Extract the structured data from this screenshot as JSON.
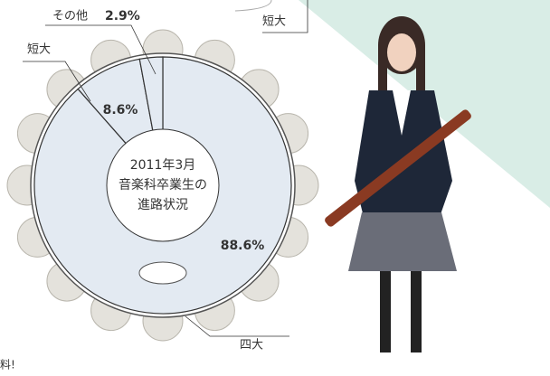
{
  "chart_data": {
    "type": "pie",
    "center_label": [
      "2011年3月",
      "音楽科卒業生の",
      "進路状況"
    ],
    "categories": [
      "四大",
      "短大",
      "その他"
    ],
    "values": [
      88.6,
      8.6,
      2.9
    ],
    "value_labels": [
      "88.6%",
      "8.6%",
      "2.9%"
    ],
    "color": "#e3eaf2"
  },
  "fragments": [
    "短大",
    "料!"
  ]
}
